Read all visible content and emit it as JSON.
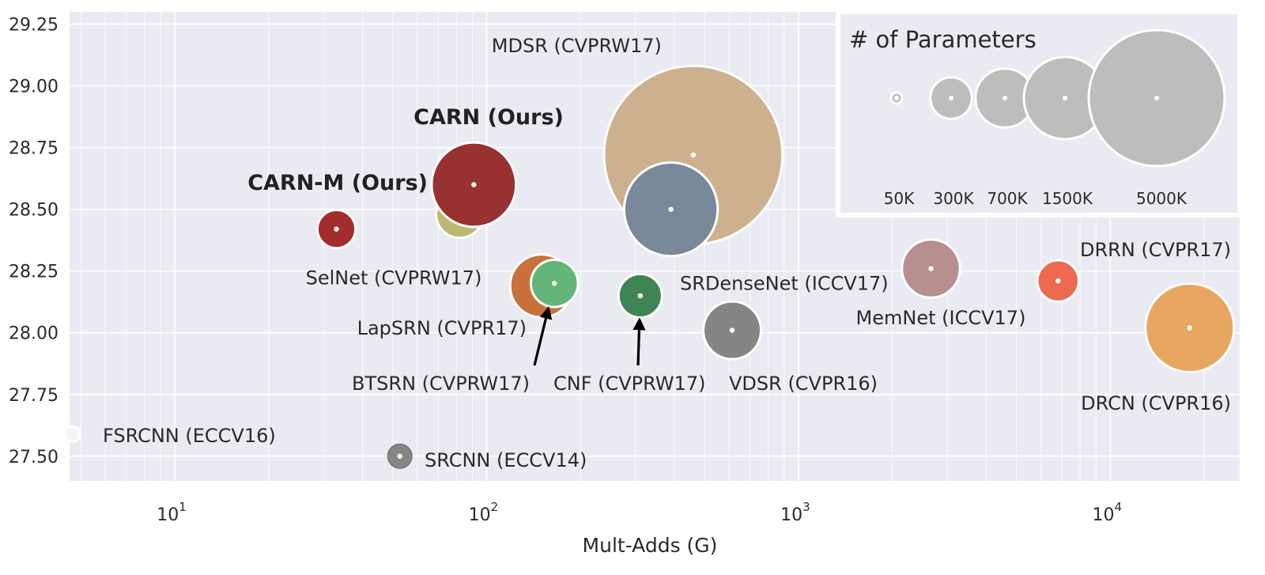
{
  "chart_data": {
    "type": "scatter",
    "xlabel": "Mult-Adds (G)",
    "ylabel": "",
    "x_scale": "log",
    "xlim": [
      4.6,
      26000
    ],
    "ylim": [
      27.4,
      29.3
    ],
    "grid": true,
    "x_ticks": [
      {
        "value": 10,
        "base": "10",
        "exp": "1"
      },
      {
        "value": 100,
        "base": "10",
        "exp": "2"
      },
      {
        "value": 1000,
        "base": "10",
        "exp": "3"
      },
      {
        "value": 10000,
        "base": "10",
        "exp": "4"
      }
    ],
    "y_ticks": [
      "27.50",
      "27.75",
      "28.00",
      "28.25",
      "28.50",
      "28.75",
      "29.00",
      "29.25"
    ],
    "points": [
      {
        "name": "MDSR (CVPRW17)",
        "x": 460,
        "y": 28.72,
        "params_k": 8000,
        "color": "#cdb18e",
        "bold": false
      },
      {
        "name": "SRDenseNet (ICCV17)",
        "x": 390,
        "y": 28.5,
        "params_k": 2000,
        "color": "#7a8999",
        "bold": false
      },
      {
        "name": "CARN-M (Ours)",
        "x": 82,
        "y": 28.48,
        "params_k": 412,
        "color": "#bcb873",
        "bold": true
      },
      {
        "name": "CARN (Ours)",
        "x": 91,
        "y": 28.6,
        "params_k": 1592,
        "color": "#983230",
        "bold": true
      },
      {
        "name": "SelNet (CVPRW17)",
        "x": 33,
        "y": 28.42,
        "params_k": 240,
        "color": "#a22d2c",
        "bold": false
      },
      {
        "name": "LapSRN (CVPR17)",
        "x": 150,
        "y": 28.19,
        "params_k": 813,
        "color": "#c8713b",
        "bold": false
      },
      {
        "name": "BTSRN (CVPRW17)",
        "x": 165,
        "y": 28.2,
        "params_k": 410,
        "color": "#63b57a",
        "bold": false
      },
      {
        "name": "CNF (CVPRW17)",
        "x": 311,
        "y": 28.15,
        "params_k": 337,
        "color": "#3f8553",
        "bold": false
      },
      {
        "name": "VDSR (CVPR16)",
        "x": 613,
        "y": 28.01,
        "params_k": 665,
        "color": "#858585",
        "bold": false
      },
      {
        "name": "MemNet (ICCV17)",
        "x": 2660,
        "y": 28.26,
        "params_k": 677,
        "color": "#b98e8e",
        "bold": false
      },
      {
        "name": "DRRN (CVPR17)",
        "x": 6800,
        "y": 28.21,
        "params_k": 297,
        "color": "#ec6a4f",
        "bold": false
      },
      {
        "name": "DRCN (CVPR16)",
        "x": 17974,
        "y": 28.02,
        "params_k": 1774,
        "color": "#e8a660",
        "bold": false
      },
      {
        "name": "FSRCNN (ECCV16)",
        "x": 4.7,
        "y": 27.59,
        "params_k": 12,
        "color": "#f5f5f5",
        "bold": false
      },
      {
        "name": "SRCNN (ECCV14)",
        "x": 52.7,
        "y": 27.5,
        "params_k": 57,
        "color": "#858585",
        "bold": false
      }
    ],
    "legend": {
      "title": "# of Parameters",
      "placement": "top-right",
      "entries": [
        {
          "label": "50K",
          "params_k": 50
        },
        {
          "label": "300K",
          "params_k": 300
        },
        {
          "label": "700K",
          "params_k": 700
        },
        {
          "label": "1500K",
          "params_k": 1500
        },
        {
          "label": "5000K",
          "params_k": 5000
        }
      ],
      "color": "#bdbdbd"
    },
    "annotations": [
      {
        "text": "BTSRN (CVPRW17)",
        "arrow_to": "BTSRN (CVPRW17)"
      },
      {
        "text": "CNF (CVPRW17)",
        "arrow_to": "CNF (CVPRW17)"
      }
    ]
  }
}
